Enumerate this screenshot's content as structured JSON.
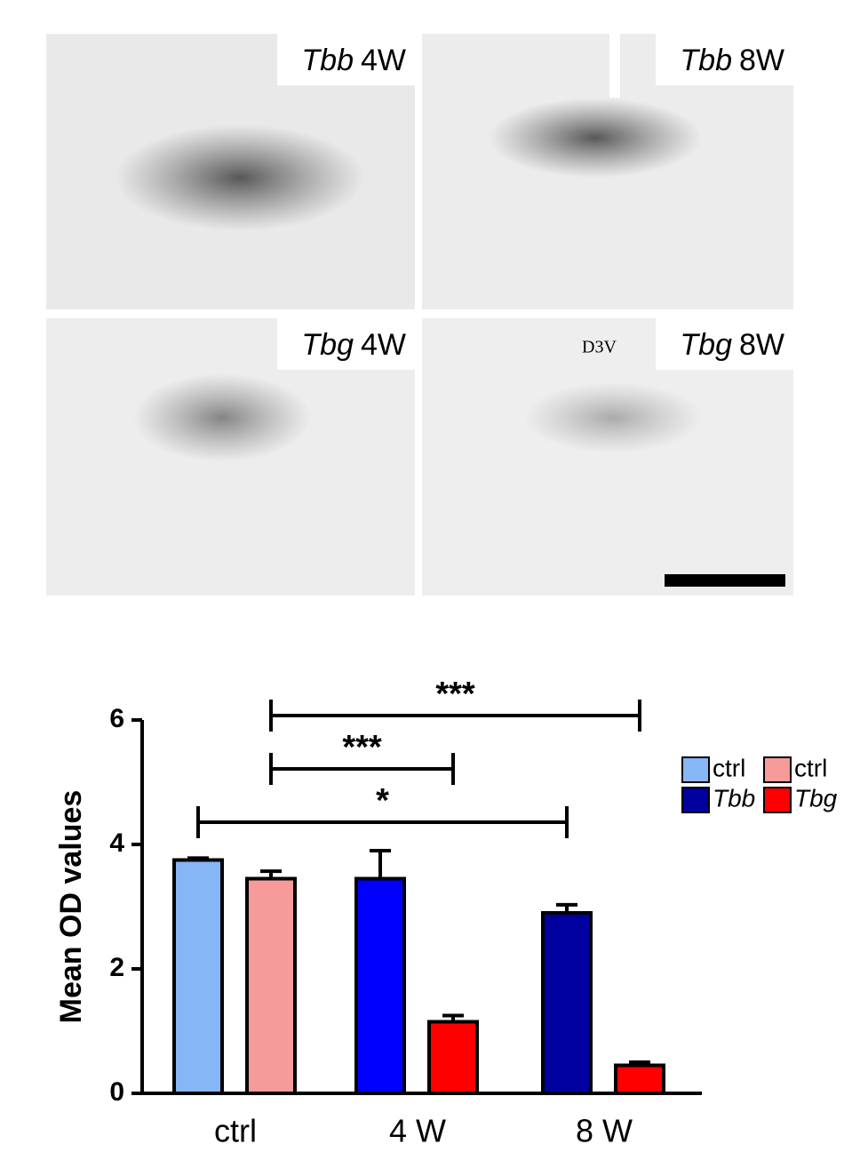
{
  "panels": [
    {
      "gene": "Tbb",
      "time": "4W"
    },
    {
      "gene": "Tbb",
      "time": "8W"
    },
    {
      "gene": "Tbg",
      "time": "4W"
    },
    {
      "gene": "Tbg",
      "time": "8W"
    }
  ],
  "annotation": "D3V",
  "chart_data": {
    "type": "bar",
    "y_label": "Mean OD values",
    "categories": [
      "ctrl",
      "4 W",
      "8 W"
    ],
    "series": [
      {
        "name": "ctrl",
        "color": "#86b6f6",
        "values": [
          3.75,
          null,
          null
        ],
        "errors": [
          0.03,
          null,
          null
        ]
      },
      {
        "name": "ctrl",
        "color": "#f79a9a",
        "values": [
          3.45,
          null,
          null
        ],
        "errors": [
          0.12,
          null,
          null
        ]
      },
      {
        "name": "Tbb",
        "color": "#0000a0",
        "colors": [
          null,
          "#0000ff",
          "#0000a0"
        ],
        "values": [
          null,
          3.45,
          2.9
        ],
        "errors": [
          null,
          0.45,
          0.13
        ]
      },
      {
        "name": "Tbg",
        "color": "#ff0000",
        "values": [
          null,
          1.15,
          0.45
        ],
        "errors": [
          null,
          0.1,
          0.05
        ]
      }
    ],
    "comparisons": [
      {
        "label": "***"
      },
      {
        "label": "***"
      },
      {
        "label": "*"
      }
    ],
    "ylim": [
      0,
      6
    ],
    "yticks": [
      0,
      2,
      4,
      6
    ]
  }
}
